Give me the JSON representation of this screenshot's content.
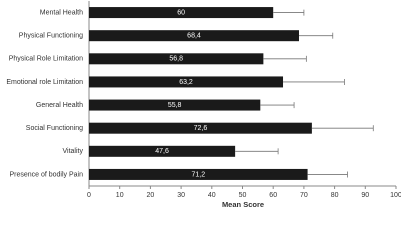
{
  "chart_data": {
    "type": "bar",
    "orientation": "horizontal",
    "categories": [
      "Mental Health",
      "Physical Functioning",
      "Physical Role Limitation",
      "Emotional role Limitation",
      "General Health",
      "Social Functioning",
      "Vitality",
      "Presence of bodily Pain"
    ],
    "values": [
      60,
      68.4,
      56.8,
      63.2,
      55.8,
      72.6,
      47.6,
      71.2
    ],
    "value_labels": [
      "60",
      "68,4",
      "56,8",
      "63,2",
      "55,8",
      "72,6",
      "47,6",
      "71,2"
    ],
    "errors": [
      10,
      11,
      14,
      20,
      11,
      20,
      14,
      13
    ],
    "color": "#1a1a1a",
    "x_label": "Mean Score",
    "xlim": [
      0,
      100
    ],
    "xticks": [
      0,
      10,
      20,
      30,
      40,
      50,
      60,
      70,
      80,
      90,
      100
    ]
  }
}
